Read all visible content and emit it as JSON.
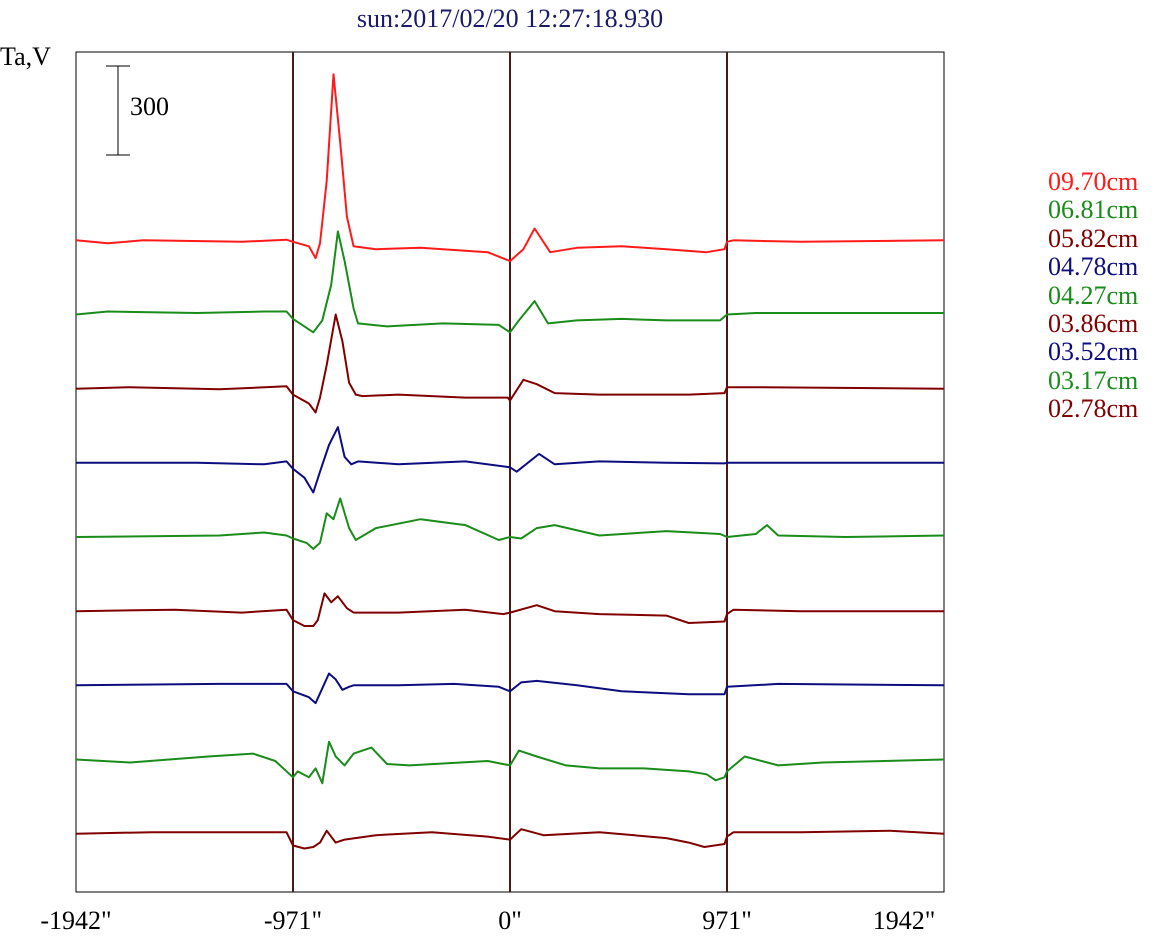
{
  "title": "sun:2017/02/20 12:27:18.930",
  "ylabel": "Ta,V",
  "scale_bar": {
    "label": "300",
    "value": 300
  },
  "chart_data": {
    "type": "line",
    "title": "sun:2017/02/20 12:27:18.930",
    "ylabel": "Ta,V",
    "xlabel": "",
    "xlim": [
      -1942,
      1942
    ],
    "x_unit": "arcsec",
    "x_ticks": [
      -1942,
      -971,
      0,
      971,
      1942
    ],
    "x_tick_labels": [
      "-1942\"",
      "-971\"",
      "0\"",
      "971\"",
      "1942\""
    ],
    "vertical_lines": [
      -971,
      0,
      971
    ],
    "grid": false,
    "legend": "right",
    "y_units_per_scale_bar": 300,
    "series": [
      {
        "name": "09.70cm",
        "color": "#ff1a1a",
        "offset": 1000,
        "x": [
          -1942,
          -1800,
          -1640,
          -1200,
          -1000,
          -971,
          -900,
          -870,
          -850,
          -820,
          -790,
          -760,
          -730,
          -700,
          -680,
          -600,
          -400,
          -100,
          0,
          60,
          110,
          180,
          300,
          500,
          700,
          880,
          960,
          971,
          1000,
          1300,
          1942
        ],
        "y": [
          0,
          -10,
          0,
          -5,
          2,
          -5,
          -20,
          -60,
          -10,
          200,
          560,
          330,
          80,
          -20,
          -22,
          -30,
          -25,
          -40,
          -70,
          -30,
          40,
          -40,
          -25,
          -20,
          -30,
          -40,
          -30,
          -5,
          0,
          -5,
          0
        ]
      },
      {
        "name": "06.81cm",
        "color": "#1a8c1a",
        "offset": 750,
        "x": [
          -1942,
          -1800,
          -1400,
          -1100,
          -1000,
          -971,
          -920,
          -880,
          -840,
          -800,
          -770,
          -740,
          -700,
          -680,
          -550,
          -300,
          -50,
          0,
          40,
          110,
          170,
          300,
          500,
          700,
          940,
          971,
          1100,
          1942
        ],
        "y": [
          0,
          10,
          5,
          10,
          10,
          -15,
          -40,
          -60,
          -20,
          100,
          280,
          180,
          20,
          -30,
          -40,
          -30,
          -35,
          -60,
          -20,
          45,
          -30,
          -20,
          -15,
          -20,
          -20,
          0,
          5,
          5
        ]
      },
      {
        "name": "05.82cm",
        "color": "#800000",
        "offset": 500,
        "x": [
          -1942,
          -1700,
          -1300,
          -1000,
          -971,
          -900,
          -870,
          -850,
          -820,
          -780,
          -750,
          -720,
          -690,
          -660,
          -500,
          -200,
          -10,
          0,
          60,
          120,
          200,
          400,
          600,
          800,
          960,
          971,
          1100,
          1942
        ],
        "y": [
          0,
          5,
          -2,
          8,
          -20,
          -50,
          -80,
          -30,
          80,
          250,
          160,
          20,
          -20,
          -25,
          -20,
          -30,
          -30,
          -40,
          30,
          15,
          -15,
          -20,
          -20,
          -20,
          -15,
          5,
          5,
          0
        ]
      },
      {
        "name": "04.78cm",
        "color": "#0d0d80",
        "offset": 250,
        "x": [
          -1942,
          -1400,
          -1100,
          -1000,
          -971,
          -920,
          -880,
          -850,
          -810,
          -770,
          -740,
          -710,
          -680,
          -500,
          -200,
          0,
          30,
          130,
          200,
          400,
          700,
          960,
          971,
          1942
        ],
        "y": [
          0,
          0,
          -5,
          5,
          -20,
          -50,
          -100,
          -30,
          60,
          120,
          20,
          -5,
          5,
          -5,
          5,
          -15,
          -30,
          30,
          -5,
          5,
          0,
          -2,
          0,
          0
        ]
      },
      {
        "name": "04.27cm",
        "color": "#1a8c1a",
        "offset": 0,
        "x": [
          -1942,
          -1300,
          -1100,
          -1000,
          -971,
          -910,
          -880,
          -850,
          -820,
          -790,
          -760,
          -720,
          -690,
          -600,
          -400,
          -200,
          -50,
          0,
          50,
          120,
          200,
          400,
          700,
          940,
          971,
          1100,
          1150,
          1200,
          1500,
          1942
        ],
        "y": [
          0,
          5,
          15,
          5,
          -5,
          -20,
          -40,
          -20,
          80,
          60,
          130,
          30,
          -10,
          30,
          60,
          40,
          -10,
          0,
          -5,
          30,
          40,
          5,
          20,
          10,
          0,
          10,
          40,
          5,
          0,
          5
        ]
      },
      {
        "name": "03.86cm",
        "color": "#800000",
        "offset": -250,
        "x": [
          -1942,
          -1500,
          -1200,
          -1000,
          -971,
          -920,
          -880,
          -860,
          -830,
          -800,
          -770,
          -730,
          -700,
          -500,
          -200,
          -30,
          0,
          120,
          200,
          400,
          700,
          800,
          960,
          971,
          1000,
          1300,
          1942
        ],
        "y": [
          0,
          5,
          -5,
          5,
          -30,
          -50,
          -50,
          -30,
          60,
          30,
          50,
          10,
          -5,
          -5,
          5,
          -10,
          -5,
          20,
          0,
          -10,
          -15,
          -40,
          -35,
          -10,
          5,
          0,
          0
        ]
      },
      {
        "name": "03.52cm",
        "color": "#0d0d80",
        "offset": -500,
        "x": [
          -1942,
          -1300,
          -1000,
          -971,
          -900,
          -870,
          -840,
          -810,
          -780,
          -750,
          -720,
          -700,
          -500,
          -250,
          -50,
          0,
          50,
          120,
          300,
          500,
          800,
          960,
          971,
          1200,
          1942
        ],
        "y": [
          0,
          5,
          5,
          -20,
          -40,
          -60,
          -10,
          40,
          20,
          -15,
          -5,
          0,
          0,
          5,
          -5,
          -20,
          10,
          15,
          0,
          -20,
          -30,
          -30,
          -5,
          5,
          0
        ]
      },
      {
        "name": "03.17cm",
        "color": "#1a8c1a",
        "offset": -750,
        "x": [
          -1942,
          -1700,
          -1350,
          -1150,
          -1050,
          -971,
          -950,
          -900,
          -870,
          -840,
          -810,
          -780,
          -740,
          -700,
          -620,
          -550,
          -450,
          -100,
          0,
          40,
          120,
          250,
          400,
          600,
          800,
          880,
          920,
          960,
          971,
          1050,
          1200,
          1400,
          1942
        ],
        "y": [
          0,
          -10,
          10,
          20,
          -5,
          -60,
          -40,
          -60,
          -30,
          -80,
          60,
          10,
          -20,
          20,
          40,
          -15,
          -20,
          -5,
          -20,
          30,
          10,
          -20,
          -30,
          -30,
          -40,
          -50,
          -70,
          -60,
          -40,
          10,
          -20,
          -10,
          0
        ]
      },
      {
        "name": "02.78cm",
        "color": "#800000",
        "offset": -1000,
        "x": [
          -1942,
          -1600,
          -1200,
          -1000,
          -971,
          -920,
          -880,
          -850,
          -820,
          -780,
          -740,
          -600,
          -350,
          -100,
          0,
          50,
          150,
          400,
          700,
          800,
          870,
          960,
          971,
          1000,
          1300,
          1700,
          1942
        ],
        "y": [
          0,
          5,
          5,
          5,
          -40,
          -50,
          -45,
          -30,
          10,
          -30,
          -20,
          -5,
          5,
          -10,
          -20,
          15,
          -5,
          5,
          -15,
          -30,
          -45,
          -35,
          -10,
          5,
          5,
          10,
          0
        ]
      }
    ]
  }
}
